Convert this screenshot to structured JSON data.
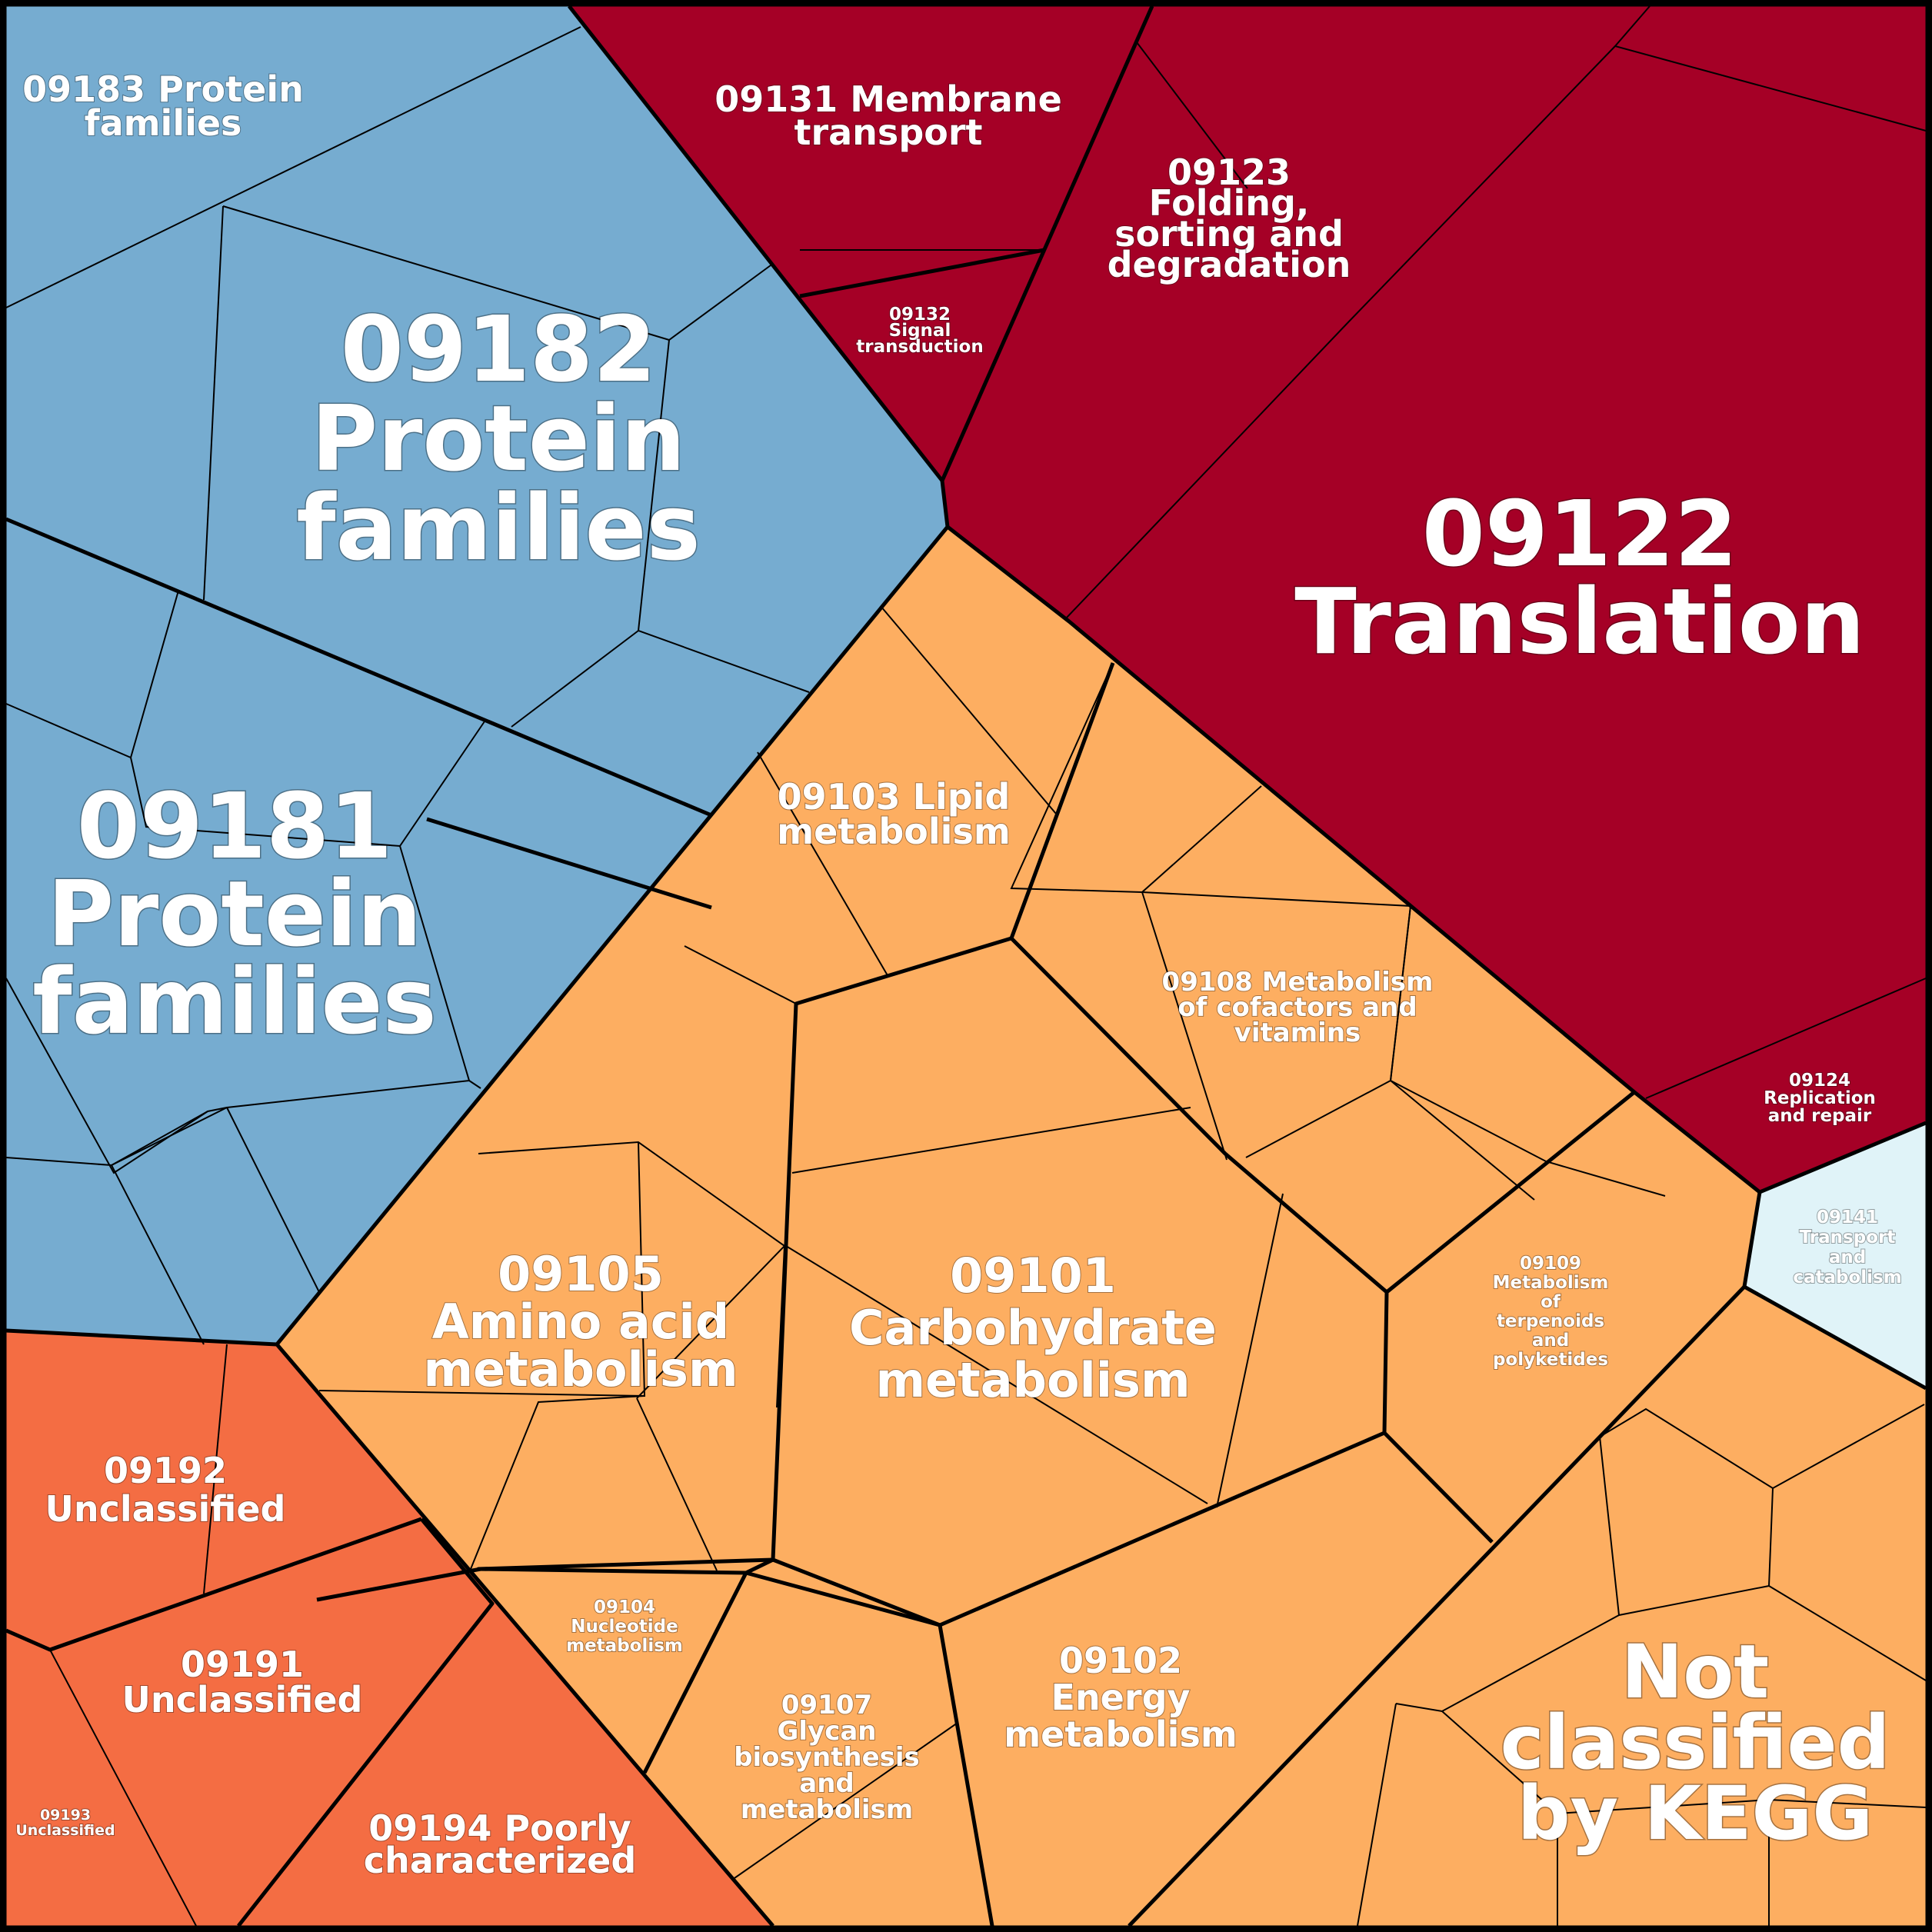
{
  "colors": {
    "protein_families": "#76acd0",
    "genetic_information": "#a50026",
    "metabolism": "#fdae61",
    "unclassified": "#f46d43",
    "cellular_processes": "#e0f3f8"
  },
  "labels": {
    "l09183": [
      "09183 Protein",
      "families"
    ],
    "l09182": [
      "09182",
      "Protein",
      "families"
    ],
    "l09181": [
      "09181",
      "Protein",
      "families"
    ],
    "l09131": [
      "09131 Membrane",
      "transport"
    ],
    "l09132": [
      "09132",
      "Signal",
      "transduction"
    ],
    "l09123": [
      "09123",
      "Folding,",
      "sorting and",
      "degradation"
    ],
    "l09122": [
      "09122",
      "Translation"
    ],
    "l09124": [
      "09124",
      "Replication",
      "and repair"
    ],
    "l09141": [
      "09141",
      "Transport",
      "and",
      "catabolism"
    ],
    "l09103": [
      "09103 Lipid",
      "metabolism"
    ],
    "l09108": [
      "09108 Metabolism",
      "of cofactors and",
      "vitamins"
    ],
    "l09109": [
      "09109",
      "Metabolism",
      "of",
      "terpenoids",
      "and",
      "polyketides"
    ],
    "l09105": [
      "09105",
      "Amino acid",
      "metabolism"
    ],
    "l09101": [
      "09101",
      "Carbohydrate",
      "metabolism"
    ],
    "l09104": [
      "09104",
      "Nucleotide",
      "metabolism"
    ],
    "l09107": [
      "09107",
      "Glycan",
      "biosynthesis",
      "and",
      "metabolism"
    ],
    "l09102": [
      "09102",
      "Energy",
      "metabolism"
    ],
    "lnot": [
      "Not",
      "classified",
      "by KEGG"
    ],
    "l09192": [
      "09192",
      "Unclassified"
    ],
    "l09191": [
      "09191",
      "Unclassified"
    ],
    "l09193": [
      "09193",
      "Unclassified"
    ],
    "l09194": [
      "09194 Poorly",
      "characterized"
    ]
  }
}
